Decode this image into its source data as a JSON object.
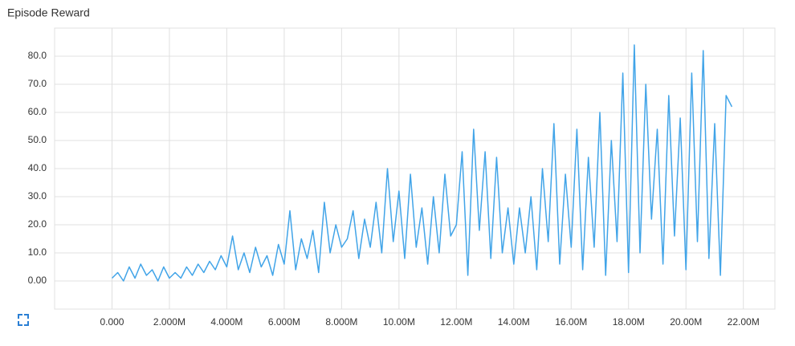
{
  "chart_data": {
    "type": "line",
    "title": "Episode Reward",
    "x": [
      0,
      200000,
      400000,
      600000,
      800000,
      1000000,
      1200000,
      1400000,
      1600000,
      1800000,
      2000000,
      2200000,
      2400000,
      2600000,
      2800000,
      3000000,
      3200000,
      3400000,
      3600000,
      3800000,
      4000000,
      4200000,
      4400000,
      4600000,
      4800000,
      5000000,
      5200000,
      5400000,
      5600000,
      5800000,
      6000000,
      6200000,
      6400000,
      6600000,
      6800000,
      7000000,
      7200000,
      7400000,
      7600000,
      7800000,
      8000000,
      8200000,
      8400000,
      8600000,
      8800000,
      9000000,
      9200000,
      9400000,
      9600000,
      9800000,
      10000000,
      10200000,
      10400000,
      10600000,
      10800000,
      11000000,
      11200000,
      11400000,
      11600000,
      11800000,
      12000000,
      12200000,
      12400000,
      12600000,
      12800000,
      13000000,
      13200000,
      13400000,
      13600000,
      13800000,
      14000000,
      14200000,
      14400000,
      14600000,
      14800000,
      15000000,
      15200000,
      15400000,
      15600000,
      15800000,
      16000000,
      16200000,
      16400000,
      16600000,
      16800000,
      17000000,
      17200000,
      17400000,
      17600000,
      17800000,
      18000000,
      18200000,
      18400000,
      18600000,
      18800000,
      19000000,
      19200000,
      19400000,
      19600000,
      19800000,
      20000000,
      20200000,
      20400000,
      20600000,
      20800000,
      21000000,
      21200000,
      21400000,
      21600000
    ],
    "series": [
      {
        "name": "Episode Reward",
        "color": "#41a4e8",
        "values": [
          1,
          3,
          0,
          5,
          1,
          6,
          2,
          4,
          0,
          5,
          1,
          3,
          1,
          5,
          2,
          6,
          3,
          7,
          4,
          9,
          5,
          16,
          4,
          10,
          3,
          12,
          5,
          9,
          2,
          13,
          6,
          25,
          4,
          15,
          8,
          18,
          3,
          28,
          10,
          20,
          12,
          15,
          25,
          8,
          22,
          12,
          28,
          10,
          40,
          14,
          32,
          8,
          38,
          12,
          26,
          6,
          30,
          10,
          38,
          16,
          20,
          46,
          2,
          54,
          18,
          46,
          8,
          44,
          10,
          26,
          6,
          26,
          10,
          30,
          4,
          40,
          14,
          56,
          6,
          38,
          12,
          54,
          4,
          44,
          12,
          60,
          2,
          50,
          14,
          74,
          3,
          84,
          10,
          70,
          22,
          54,
          6,
          66,
          16,
          58,
          4,
          74,
          14,
          82,
          8,
          56,
          2,
          66,
          62
        ]
      }
    ],
    "xlim": [
      -2000000,
      23100000
    ],
    "xticks": [
      {
        "value": 0,
        "label": "0.000"
      },
      {
        "value": 2000000,
        "label": "2.000M"
      },
      {
        "value": 4000000,
        "label": "4.000M"
      },
      {
        "value": 6000000,
        "label": "6.000M"
      },
      {
        "value": 8000000,
        "label": "8.000M"
      },
      {
        "value": 10000000,
        "label": "10.00M"
      },
      {
        "value": 12000000,
        "label": "12.00M"
      },
      {
        "value": 14000000,
        "label": "14.00M"
      },
      {
        "value": 16000000,
        "label": "16.00M"
      },
      {
        "value": 18000000,
        "label": "18.00M"
      },
      {
        "value": 20000000,
        "label": "20.00M"
      },
      {
        "value": 22000000,
        "label": "22.00M"
      }
    ],
    "ylim": [
      -10,
      90
    ],
    "yticks": [
      {
        "value": 0,
        "label": "0.00"
      },
      {
        "value": 10,
        "label": "10.0"
      },
      {
        "value": 20,
        "label": "20.0"
      },
      {
        "value": 30,
        "label": "30.0"
      },
      {
        "value": 40,
        "label": "40.0"
      },
      {
        "value": 50,
        "label": "50.0"
      },
      {
        "value": 60,
        "label": "60.0"
      },
      {
        "value": 70,
        "label": "70.0"
      },
      {
        "value": 80,
        "label": "80.0"
      }
    ],
    "grid": true
  }
}
